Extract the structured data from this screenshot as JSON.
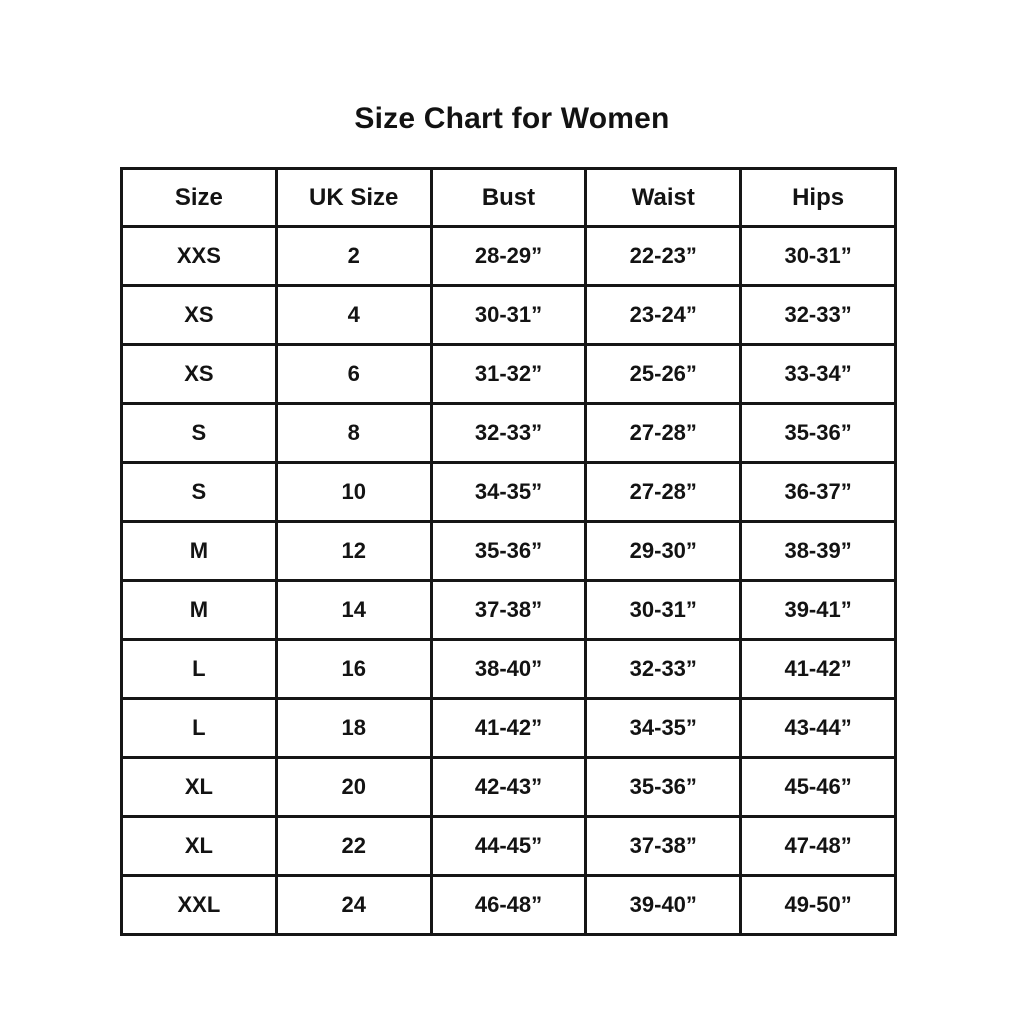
{
  "page": {
    "title": "Size Chart for Women"
  },
  "chart_data": {
    "type": "table",
    "title": "Size Chart for Women",
    "columns": [
      "Size",
      "UK Size",
      "Bust",
      "Waist",
      "Hips"
    ],
    "rows": [
      [
        "XXS",
        "2",
        "28-29”",
        "22-23”",
        "30-31”"
      ],
      [
        "XS",
        "4",
        "30-31”",
        "23-24”",
        "32-33”"
      ],
      [
        "XS",
        "6",
        "31-32”",
        "25-26”",
        "33-34”"
      ],
      [
        "S",
        "8",
        "32-33”",
        "27-28”",
        "35-36”"
      ],
      [
        "S",
        "10",
        "34-35”",
        "27-28”",
        "36-37”"
      ],
      [
        "M",
        "12",
        "35-36”",
        "29-30”",
        "38-39”"
      ],
      [
        "M",
        "14",
        "37-38”",
        "30-31”",
        "39-41”"
      ],
      [
        "L",
        "16",
        "38-40”",
        "32-33”",
        "41-42”"
      ],
      [
        "L",
        "18",
        "41-42”",
        "34-35”",
        "43-44”"
      ],
      [
        "XL",
        "20",
        "42-43”",
        "35-36”",
        "45-46”"
      ],
      [
        "XL",
        "22",
        "44-45”",
        "37-38”",
        "47-48”"
      ],
      [
        "XXL",
        "24",
        "46-48”",
        "39-40”",
        "49-50”"
      ]
    ],
    "layout": {
      "text_color": "#131313",
      "border_color": "#161616",
      "background": "#ffffff",
      "grid": true
    }
  }
}
